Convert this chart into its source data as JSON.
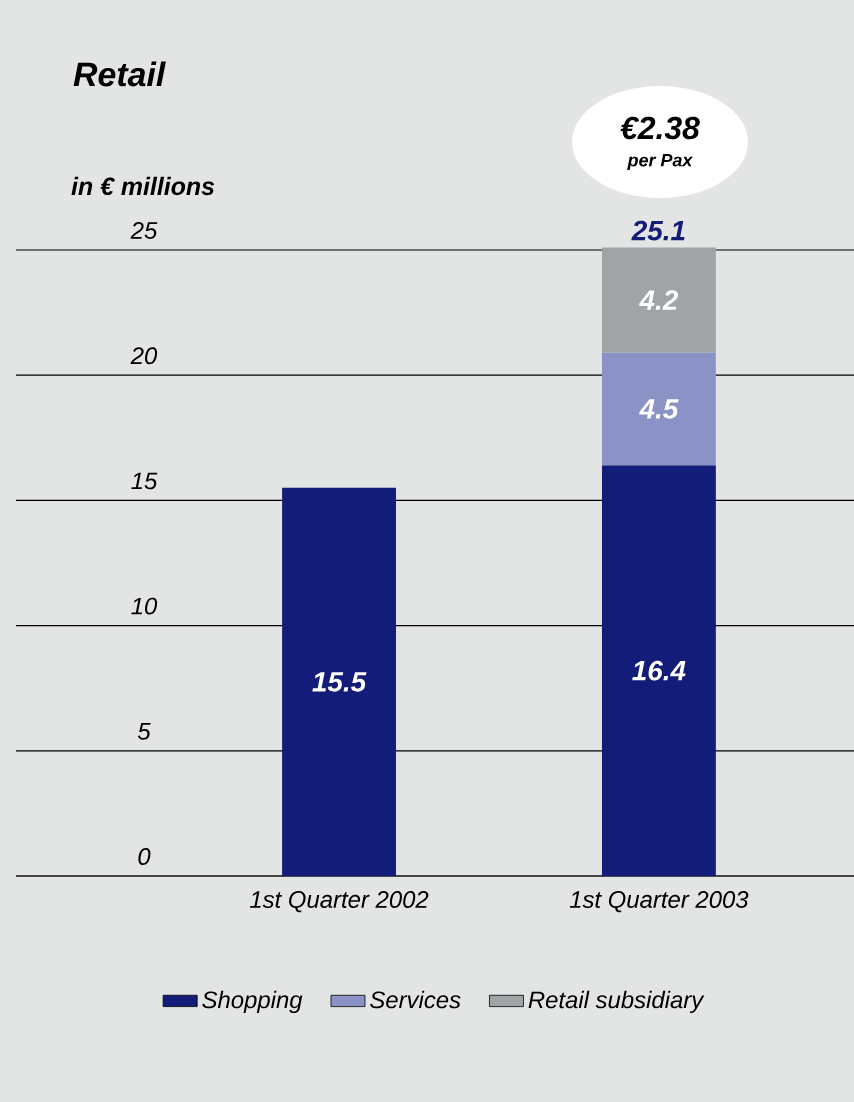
{
  "chart_data": {
    "type": "bar",
    "stacked": true,
    "title": "Retail",
    "ylabel": "in € millions",
    "categories": [
      "1st Quarter 2002",
      "1st Quarter 2003"
    ],
    "series": [
      {
        "name": "Shopping",
        "color": "#131c78",
        "values": [
          15.5,
          16.4
        ]
      },
      {
        "name": "Services",
        "color": "#8b93c6",
        "values": [
          null,
          4.5
        ]
      },
      {
        "name": "Retail subsidiary",
        "color": "#a0a4a7",
        "values": [
          null,
          4.2
        ]
      }
    ],
    "totals": [
      null,
      "25.1"
    ],
    "annotations": [
      "€2.38",
      "per Pax"
    ],
    "ylim": [
      0,
      25
    ],
    "yticks": [
      0,
      5,
      10,
      15,
      20,
      25
    ],
    "grid": "y",
    "legend": "bottom",
    "data_labels": true
  }
}
